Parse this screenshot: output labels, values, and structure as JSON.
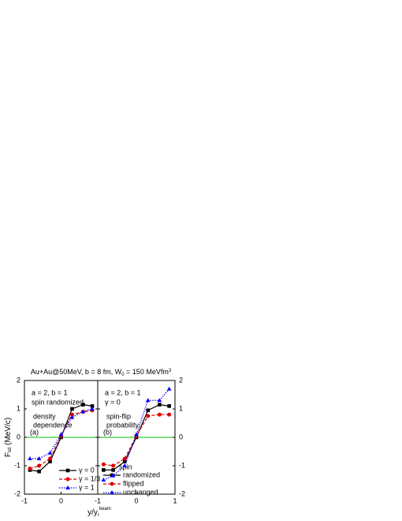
{
  "chart_data": [
    {
      "type": "line",
      "title": [
        "Au+Au@50MeV, b = 8 fm, W",
        "0",
        " = 150 MeVfm",
        "3"
      ],
      "ylabel": [
        "F",
        "sd",
        " (MeV/c)"
      ],
      "xlabel": [
        "y/y",
        "r",
        "beam"
      ],
      "xlim": [
        -1,
        1
      ],
      "xticks": [
        -1,
        0
      ],
      "ylim": [
        -2,
        2
      ],
      "yticks": [
        -2,
        -1,
        0,
        1,
        2
      ],
      "zero_line_color": "#00c000",
      "annotations": [
        "a = 2, b = 1",
        "spin randomized",
        "density",
        "dependence",
        "(a)"
      ],
      "x": [
        -0.85,
        -0.6,
        -0.3,
        0,
        0.3,
        0.6,
        0.85
      ],
      "series": [
        {
          "name": "γ = 0",
          "color": "#000000",
          "marker": "square",
          "linestyle": "solid",
          "values": [
            -1.15,
            -1.2,
            -0.85,
            0,
            1.0,
            1.15,
            1.1
          ]
        },
        {
          "name": "γ = 1/3",
          "color": "#e00000",
          "marker": "circle",
          "linestyle": "dashed",
          "values": [
            -1.1,
            -1.0,
            -0.75,
            0.05,
            0.8,
            0.9,
            0.95
          ]
        },
        {
          "name": "γ = 1",
          "color": "#0000ff",
          "marker": "triangle",
          "linestyle": "dotted",
          "values": [
            -0.75,
            -0.75,
            -0.55,
            0.1,
            0.7,
            0.9,
            1.0
          ]
        }
      ]
    },
    {
      "type": "line",
      "xlim": [
        -1,
        1
      ],
      "xticks": [
        -1,
        0,
        1
      ],
      "ylim": [
        -2,
        2
      ],
      "yticks": [
        -2,
        -1,
        0,
        1,
        2
      ],
      "zero_line_color": "#00c000",
      "annotations": [
        "a = 2, b = 1",
        "γ = 0",
        "spin-flip",
        "probability",
        "(b)"
      ],
      "legend_title": "spin",
      "x": [
        -0.85,
        -0.6,
        -0.3,
        0,
        0.3,
        0.6,
        0.85
      ],
      "series": [
        {
          "name": "randomized",
          "color": "#000000",
          "marker": "square",
          "linestyle": "solid",
          "values": [
            -1.15,
            -1.15,
            -0.85,
            0,
            0.95,
            1.15,
            1.1
          ]
        },
        {
          "name": "flipped",
          "color": "#e00000",
          "marker": "circle",
          "linestyle": "dashed",
          "values": [
            -0.95,
            -1.0,
            -0.75,
            0.05,
            0.75,
            0.8,
            0.8
          ]
        },
        {
          "name": "unchanged",
          "color": "#0000ff",
          "marker": "triangle",
          "linestyle": "dotted",
          "values": [
            -1.5,
            -1.35,
            -1.0,
            0.1,
            1.3,
            1.3,
            1.7
          ]
        }
      ]
    }
  ]
}
